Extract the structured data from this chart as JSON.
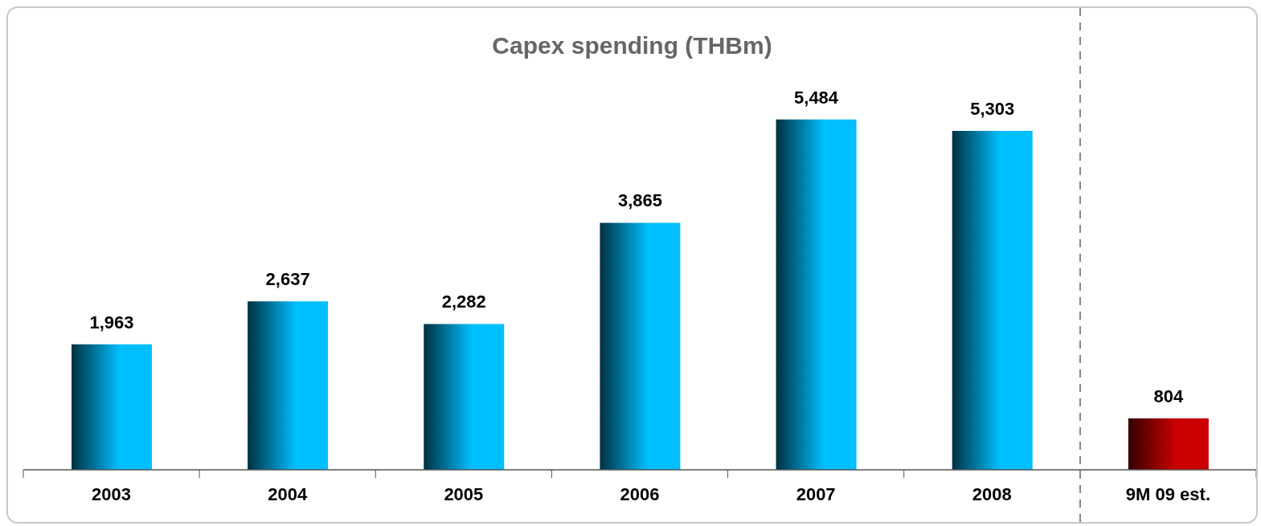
{
  "chart_data": {
    "type": "bar",
    "title": "Capex spending (THBm)",
    "categories": [
      "2003",
      "2004",
      "2005",
      "2006",
      "2007",
      "2008",
      "9M 09 est."
    ],
    "values": [
      1963,
      2637,
      2282,
      3865,
      5484,
      5303,
      804
    ],
    "colors": [
      "#00bfff",
      "#00bfff",
      "#00bfff",
      "#00bfff",
      "#00bfff",
      "#00bfff",
      "#cc0000"
    ],
    "value_labels": [
      "1,963",
      "2,637",
      "2,282",
      "3,865",
      "5,484",
      "5,303",
      "804"
    ]
  }
}
